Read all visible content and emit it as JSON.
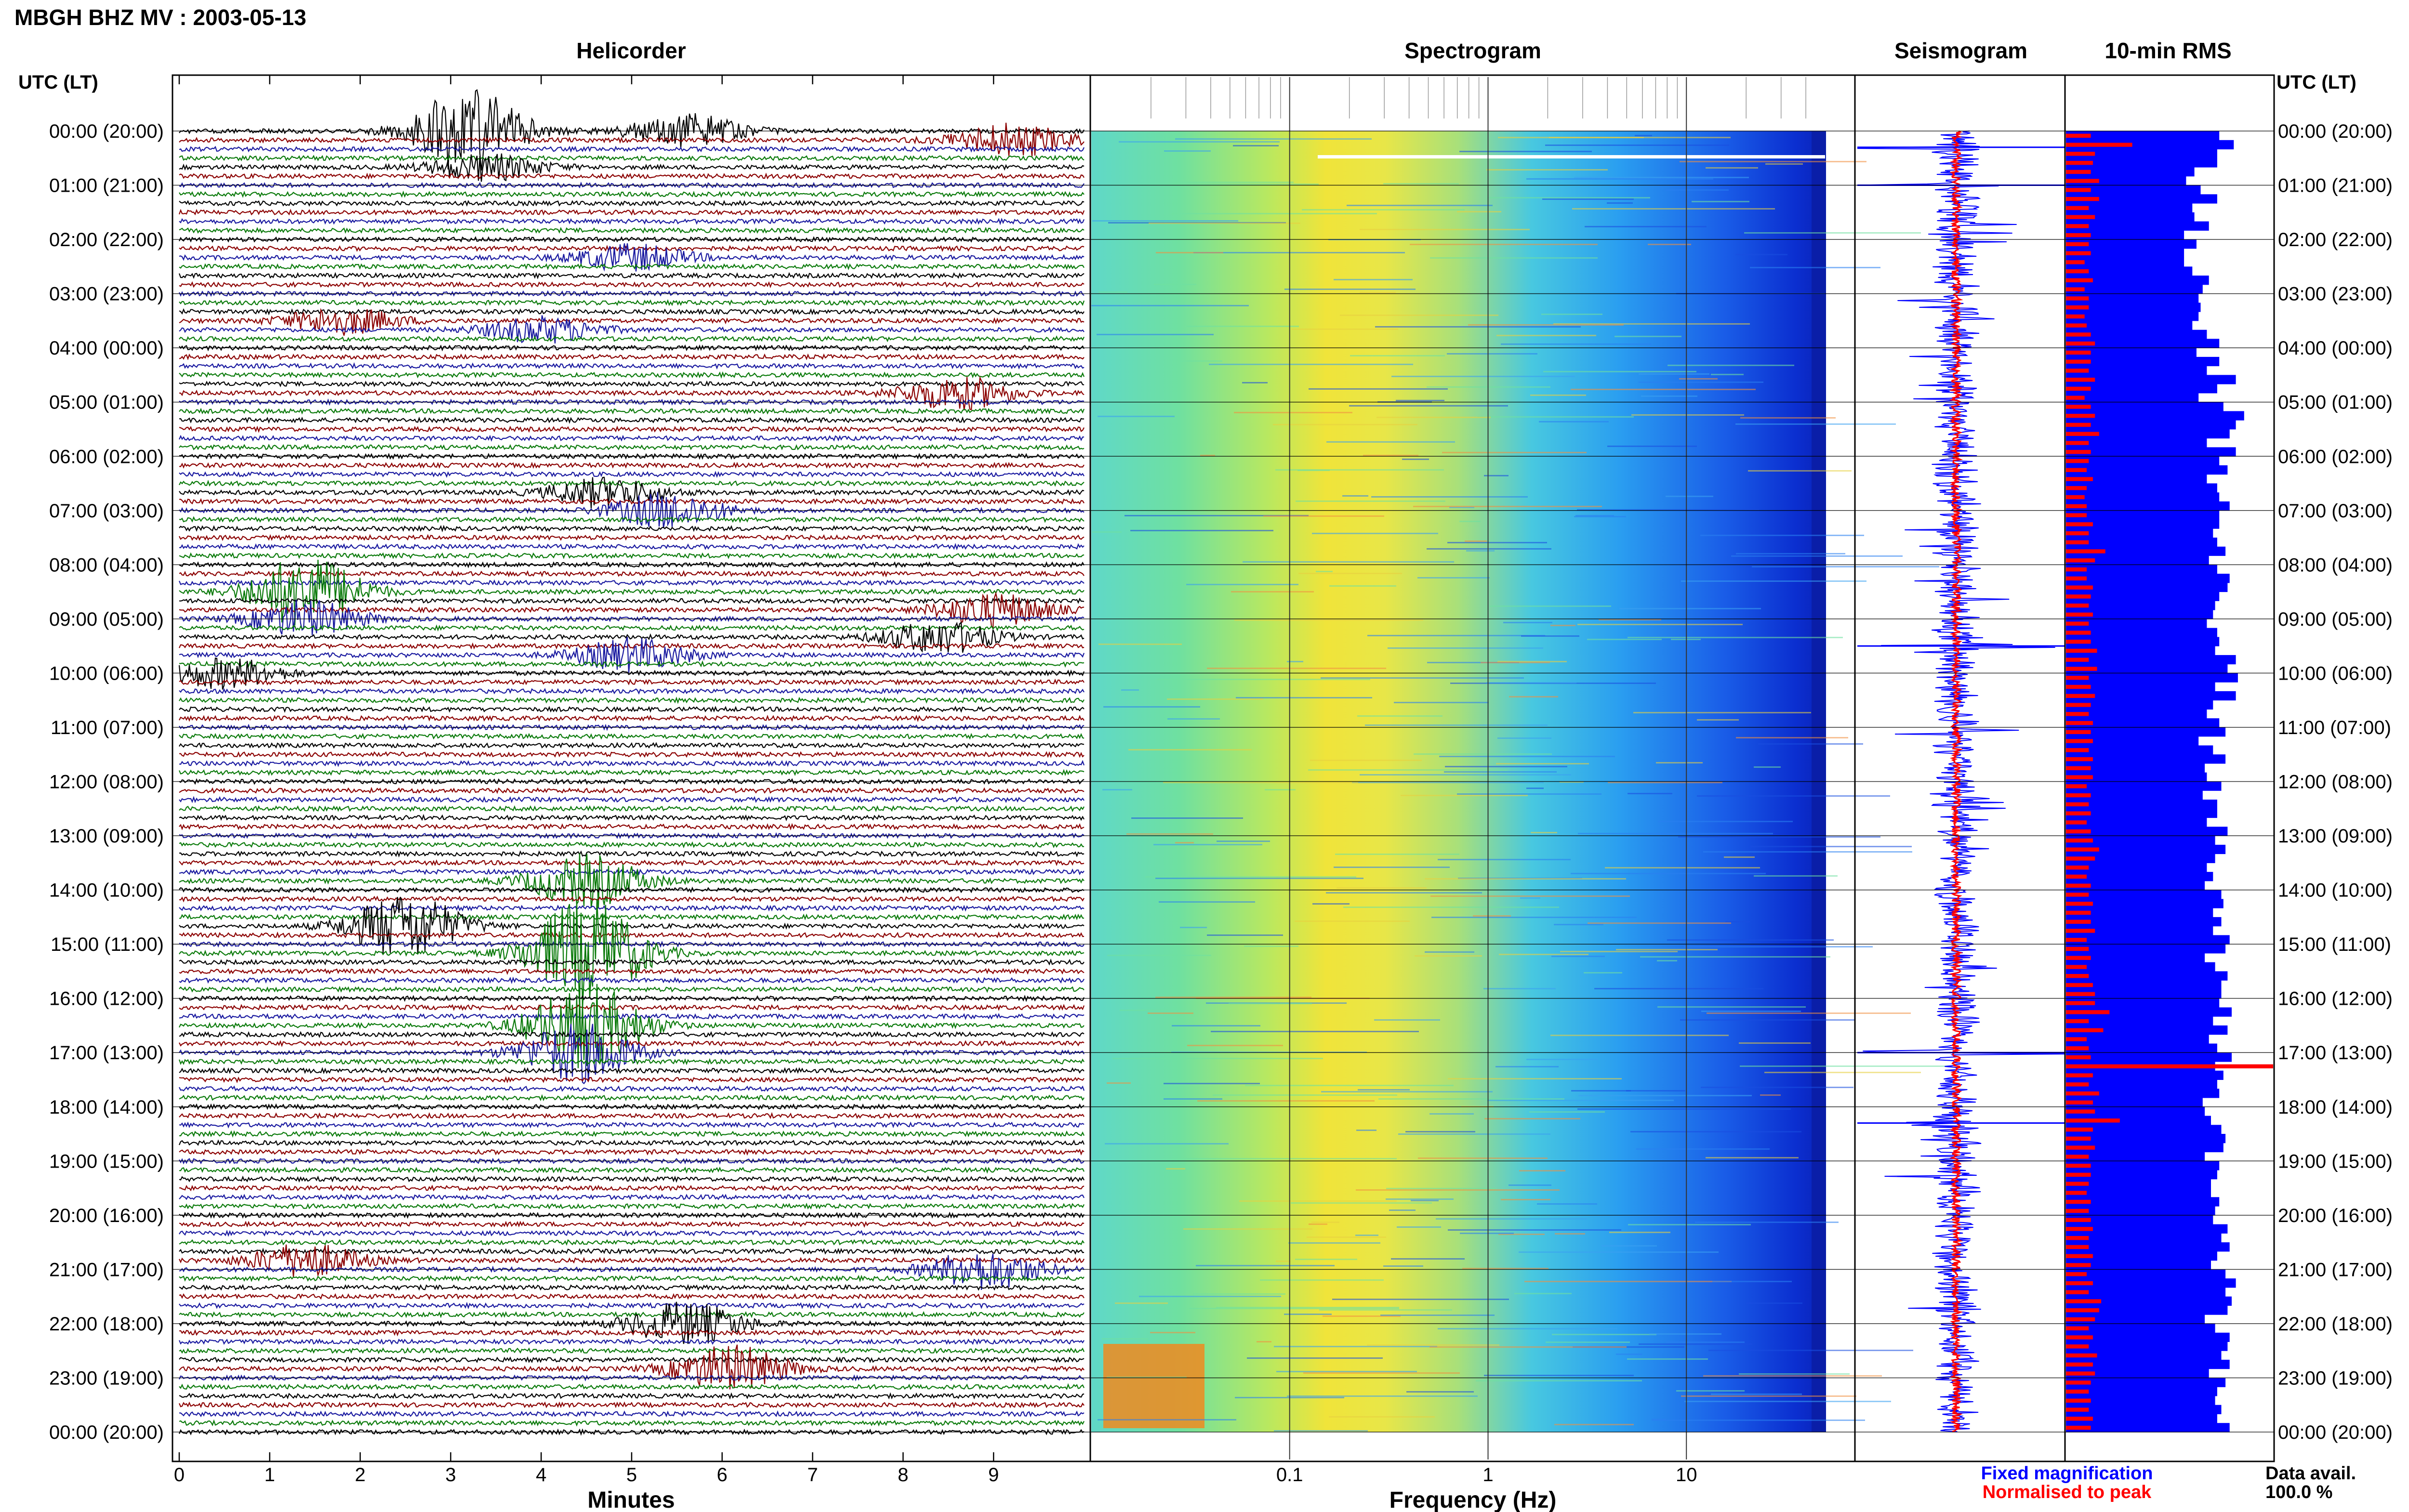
{
  "title": "MBGH BHZ MV : 2003-05-13",
  "panels": {
    "helicorder": "Helicorder",
    "spectrogram": "Spectrogram",
    "seismogram": "Seismogram",
    "rms": "10-min RMS"
  },
  "left_axis_label": "UTC (LT)",
  "right_axis_label": "UTC (LT)",
  "time_labels": [
    "00:00 (20:00)",
    "01:00 (21:00)",
    "02:00 (22:00)",
    "03:00 (23:00)",
    "04:00 (00:00)",
    "05:00 (01:00)",
    "06:00 (02:00)",
    "07:00 (03:00)",
    "08:00 (04:00)",
    "09:00 (05:00)",
    "10:00 (06:00)",
    "11:00 (07:00)",
    "12:00 (08:00)",
    "13:00 (09:00)",
    "14:00 (10:00)",
    "15:00 (11:00)",
    "16:00 (12:00)",
    "17:00 (13:00)",
    "18:00 (14:00)",
    "19:00 (15:00)",
    "20:00 (16:00)",
    "21:00 (17:00)",
    "22:00 (18:00)",
    "23:00 (19:00)",
    "00:00 (20:00)"
  ],
  "legend": {
    "fixed": "Fixed magnification",
    "normalised": "Normalised to peak",
    "data_avail_label": "Data avail.",
    "data_avail_value": "100.0 %"
  },
  "colors": {
    "heli_traces": [
      "#000000",
      "#8b0000",
      "#1a1aa0",
      "#0a7a0a"
    ],
    "fixed": "#0000ff",
    "normalised": "#ff0000"
  },
  "chart_data": [
    {
      "type": "line",
      "name": "helicorder",
      "xlabel": "Minutes",
      "xlim": [
        0,
        10
      ],
      "x_ticks": [
        0,
        1,
        2,
        3,
        4,
        5,
        6,
        7,
        8,
        9
      ],
      "rows_per_hour": 6,
      "row_minutes": 10,
      "events": [
        {
          "row": 0,
          "minute": 3.2,
          "amp": 2.6
        },
        {
          "row": 0,
          "minute": 5.6,
          "amp": 1.0
        },
        {
          "row": 1,
          "minute": 9.2,
          "amp": 1.0
        },
        {
          "row": 4,
          "minute": 3.4,
          "amp": 0.8
        },
        {
          "row": 14,
          "minute": 5.0,
          "amp": 0.8
        },
        {
          "row": 21,
          "minute": 1.8,
          "amp": 0.8
        },
        {
          "row": 22,
          "minute": 4.0,
          "amp": 0.8
        },
        {
          "row": 29,
          "minute": 8.6,
          "amp": 1.0
        },
        {
          "row": 40,
          "minute": 4.7,
          "amp": 0.9
        },
        {
          "row": 42,
          "minute": 5.4,
          "amp": 1.1
        },
        {
          "row": 51,
          "minute": 1.4,
          "amp": 2.2
        },
        {
          "row": 53,
          "minute": 9.0,
          "amp": 1.0
        },
        {
          "row": 54,
          "minute": 1.4,
          "amp": 1.1
        },
        {
          "row": 56,
          "minute": 8.4,
          "amp": 1.0
        },
        {
          "row": 58,
          "minute": 5.0,
          "amp": 1.0
        },
        {
          "row": 60,
          "minute": 0.5,
          "amp": 0.9
        },
        {
          "row": 83,
          "minute": 4.5,
          "amp": 1.6
        },
        {
          "row": 88,
          "minute": 2.5,
          "amp": 2.0
        },
        {
          "row": 91,
          "minute": 4.5,
          "amp": 3.4
        },
        {
          "row": 99,
          "minute": 4.5,
          "amp": 2.6
        },
        {
          "row": 102,
          "minute": 4.4,
          "amp": 1.8
        },
        {
          "row": 125,
          "minute": 1.4,
          "amp": 1.0
        },
        {
          "row": 126,
          "minute": 8.9,
          "amp": 1.2
        },
        {
          "row": 132,
          "minute": 5.6,
          "amp": 1.3
        },
        {
          "row": 137,
          "minute": 6.1,
          "amp": 1.4
        }
      ]
    },
    {
      "type": "heatmap",
      "name": "spectrogram",
      "xlabel": "Frequency (Hz)",
      "xscale": "log",
      "xlim": [
        0.01,
        50
      ],
      "x_tick_labels": [
        "0.1",
        "1",
        "10"
      ],
      "x_ticks": [
        0.1,
        1,
        10
      ],
      "peak_frequency_hz": 0.35
    },
    {
      "type": "line",
      "name": "seismogram",
      "series": [
        {
          "name": "Fixed magnification",
          "color": "#0000ff"
        },
        {
          "name": "Normalised to peak",
          "color": "#ff0000"
        }
      ],
      "spikes_hours": [
        0.3,
        1.0,
        9.5,
        17.0,
        18.3
      ]
    },
    {
      "type": "bar",
      "name": "10-min RMS",
      "orientation": "horizontal",
      "bins_per_hour": 6,
      "fixed_magnification": [
        0.74,
        0.81,
        0.73,
        0.73,
        0.62,
        0.58,
        0.65,
        0.73,
        0.61,
        0.62,
        0.69,
        0.57,
        0.63,
        0.57,
        0.57,
        0.61,
        0.69,
        0.66,
        0.64,
        0.65,
        0.64,
        0.61,
        0.68,
        0.74,
        0.63,
        0.74,
        0.68,
        0.82,
        0.73,
        0.64,
        0.76,
        0.86,
        0.82,
        0.79,
        0.68,
        0.82,
        0.74,
        0.78,
        0.68,
        0.73,
        0.74,
        0.79,
        0.74,
        0.74,
        0.71,
        0.73,
        0.77,
        0.69,
        0.73,
        0.79,
        0.78,
        0.74,
        0.72,
        0.71,
        0.68,
        0.73,
        0.74,
        0.72,
        0.82,
        0.78,
        0.83,
        0.72,
        0.82,
        0.71,
        0.68,
        0.74,
        0.77,
        0.64,
        0.71,
        0.77,
        0.67,
        0.68,
        0.75,
        0.66,
        0.73,
        0.73,
        0.68,
        0.78,
        0.72,
        0.77,
        0.72,
        0.68,
        0.71,
        0.67,
        0.75,
        0.76,
        0.71,
        0.75,
        0.71,
        0.79,
        0.77,
        0.67,
        0.72,
        0.78,
        0.75,
        0.75,
        0.74,
        0.8,
        0.71,
        0.78,
        0.69,
        0.73,
        0.8,
        0.72,
        0.76,
        0.73,
        0.74,
        0.66,
        0.67,
        0.7,
        0.75,
        0.77,
        0.76,
        0.67,
        0.74,
        0.73,
        0.7,
        0.7,
        0.74,
        0.72,
        0.71,
        0.78,
        0.75,
        0.79,
        0.73,
        0.7,
        0.77,
        0.82,
        0.77,
        0.8,
        0.78,
        0.67,
        0.72,
        0.79,
        0.78,
        0.75,
        0.79,
        0.69,
        0.77,
        0.73,
        0.72,
        0.75,
        0.73,
        0.79
      ],
      "normalised_to_peak": [
        0.12,
        0.32,
        0.14,
        0.13,
        0.12,
        0.16,
        0.12,
        0.16,
        0.11,
        0.14,
        0.11,
        0.12,
        0.11,
        0.12,
        0.09,
        0.11,
        0.13,
        0.09,
        0.11,
        0.11,
        0.09,
        0.1,
        0.12,
        0.14,
        0.12,
        0.12,
        0.11,
        0.14,
        0.12,
        0.09,
        0.12,
        0.14,
        0.12,
        0.16,
        0.11,
        0.12,
        0.11,
        0.1,
        0.13,
        0.1,
        0.09,
        0.1,
        0.1,
        0.13,
        0.11,
        0.11,
        0.19,
        0.14,
        0.1,
        0.1,
        0.13,
        0.12,
        0.11,
        0.13,
        0.11,
        0.12,
        0.12,
        0.15,
        0.11,
        0.15,
        0.11,
        0.12,
        0.14,
        0.12,
        0.11,
        0.13,
        0.12,
        0.13,
        0.11,
        0.13,
        0.12,
        0.13,
        0.1,
        0.12,
        0.11,
        0.12,
        0.1,
        0.12,
        0.13,
        0.16,
        0.14,
        0.11,
        0.1,
        0.12,
        0.11,
        0.13,
        0.12,
        0.12,
        0.14,
        0.1,
        0.11,
        0.12,
        0.1,
        0.11,
        0.13,
        0.14,
        0.14,
        0.21,
        0.11,
        0.18,
        0.1,
        0.11,
        0.12,
        1.0,
        0.13,
        0.11,
        0.16,
        0.13,
        0.14,
        0.26,
        0.13,
        0.12,
        0.14,
        0.11,
        0.12,
        0.12,
        0.11,
        0.1,
        0.12,
        0.11,
        0.12,
        0.13,
        0.11,
        0.11,
        0.13,
        0.12,
        0.1,
        0.13,
        0.11,
        0.17,
        0.16,
        0.14,
        0.11,
        0.13,
        0.11,
        0.15,
        0.13,
        0.14,
        0.12,
        0.11,
        0.12,
        0.11,
        0.13,
        0.12
      ]
    }
  ]
}
